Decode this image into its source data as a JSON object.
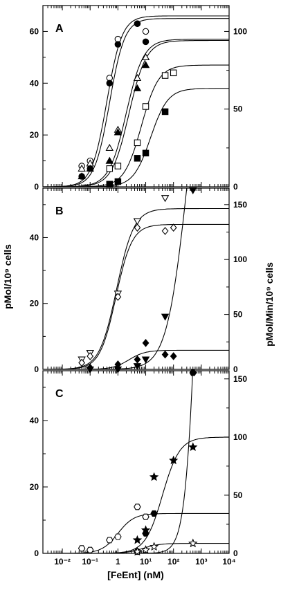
{
  "figure": {
    "left_axis_title": "pMol/10⁹ cells",
    "right_axis_title": "pMol/Min/10⁹ cells",
    "x_axis_title": "[FeEnt] (nM)",
    "x_tick_labels": [
      "10⁻²",
      "10⁻¹",
      "1",
      "10¹",
      "10²",
      "10³",
      "10⁴"
    ]
  },
  "chart_data": [
    {
      "type": "scatter",
      "panel": "A",
      "x_scale": "log",
      "xlim": [
        0.002,
        10000
      ],
      "ylim_left": [
        0,
        70
      ],
      "ylim_right": [
        0,
        116.67
      ],
      "left_ticks": [
        "0",
        "20",
        "40",
        "60"
      ],
      "right_ticks": [
        "0",
        "50",
        "100"
      ],
      "grid": false,
      "series": [
        {
          "marker": "circle-open",
          "x": [
            0.05,
            0.1,
            0.5,
            1,
            5,
            10
          ],
          "y": [
            8,
            10,
            42,
            57,
            63,
            60
          ]
        },
        {
          "marker": "circle-filled",
          "x": [
            0.05,
            0.1,
            0.5,
            1,
            5,
            10
          ],
          "y": [
            4,
            7,
            40,
            55,
            63,
            56
          ]
        },
        {
          "marker": "triangle-open",
          "x": [
            0.05,
            0.1,
            0.5,
            1,
            5,
            10
          ],
          "y": [
            7,
            9,
            15,
            22,
            42,
            50
          ]
        },
        {
          "marker": "triangle-filled",
          "x": [
            0.05,
            0.1,
            0.5,
            1,
            5,
            10
          ],
          "y": [
            4,
            7,
            10,
            21,
            38,
            47
          ]
        },
        {
          "marker": "square-open",
          "x": [
            0.5,
            1,
            5,
            10,
            50,
            100
          ],
          "y": [
            7,
            8,
            17,
            31,
            43,
            44
          ]
        },
        {
          "marker": "square-filled",
          "x": [
            0.5,
            1,
            5,
            10,
            50
          ],
          "y": [
            1,
            2,
            11,
            13,
            29
          ]
        }
      ],
      "fits": [
        {
          "top": 66,
          "ec50": 0.4,
          "n": 1.6
        },
        {
          "top": 65,
          "ec50": 0.5,
          "n": 1.6
        },
        {
          "top": 57,
          "ec50": 2,
          "n": 1.4
        },
        {
          "top": 56.5,
          "ec50": 2.5,
          "n": 1.4
        },
        {
          "top": 47,
          "ec50": 7,
          "n": 1.4
        },
        {
          "top": 38,
          "ec50": 15,
          "n": 1.4
        }
      ]
    },
    {
      "type": "scatter",
      "panel": "B",
      "x_scale": "log",
      "xlim": [
        0.002,
        10000
      ],
      "ylim_left": [
        0,
        55
      ],
      "ylim_right": [
        0,
        165
      ],
      "left_ticks": [
        "0",
        "20",
        "40"
      ],
      "right_ticks": [
        "0",
        "50",
        "100",
        "150"
      ],
      "grid": false,
      "series": [
        {
          "marker": "triangle-down-open",
          "x": [
            0.05,
            0.1,
            1,
            5,
            50
          ],
          "y": [
            3,
            5,
            23,
            45,
            52
          ]
        },
        {
          "marker": "diamond-open",
          "x": [
            0.05,
            0.1,
            1,
            5,
            50,
            100
          ],
          "y": [
            2,
            4,
            22,
            43,
            42,
            43
          ]
        },
        {
          "marker": "diamond-filled",
          "x": [
            0.1,
            1,
            5,
            10,
            50,
            100
          ],
          "y": [
            0.5,
            1.5,
            3,
            8,
            4.5,
            4
          ]
        },
        {
          "marker": "triangle-down-filled",
          "x": [
            0.1,
            1,
            5,
            10,
            50,
            500
          ],
          "y": [
            0,
            0,
            1,
            3,
            16,
            55
          ]
        }
      ],
      "fits": [
        {
          "top": 48.8,
          "ec50": 0.9,
          "n": 1.4
        },
        {
          "top": 44,
          "ec50": 0.85,
          "n": 1.5
        },
        {
          "top": 5.8,
          "ec50": 2.5,
          "n": 1.5
        },
        {
          "top": 110,
          "ec50": 300,
          "n": 1.2
        }
      ]
    },
    {
      "type": "scatter",
      "panel": "C",
      "x_scale": "log",
      "xlim": [
        0.002,
        10000
      ],
      "ylim_left": [
        0,
        55
      ],
      "ylim_right": [
        0,
        157
      ],
      "left_ticks": [
        "0",
        "20",
        "40"
      ],
      "right_ticks": [
        "0",
        "50",
        "100",
        "150"
      ],
      "grid": false,
      "series": [
        {
          "marker": "hexagon-open",
          "x": [
            0.05,
            0.1,
            0.5,
            1,
            5,
            10
          ],
          "y": [
            1.5,
            1,
            4,
            5,
            14,
            11
          ]
        },
        {
          "marker": "hexagon-filled",
          "x": [
            5,
            10,
            20,
            500
          ],
          "y": [
            0.5,
            6,
            12,
            55
          ]
        },
        {
          "marker": "star-filled",
          "x": [
            5,
            10,
            20,
            100,
            500
          ],
          "y": [
            4,
            7,
            23,
            28,
            32
          ]
        },
        {
          "marker": "star-open",
          "x": [
            5,
            10,
            20,
            500
          ],
          "y": [
            0.5,
            1,
            2,
            3
          ]
        }
      ],
      "fits": [
        {
          "top": 12,
          "ec50": 1,
          "n": 1.5
        },
        {
          "top": 200,
          "ec50": 800,
          "n": 2
        },
        {
          "top": 35,
          "ec50": 40,
          "n": 1.4
        },
        {
          "top": 3,
          "ec50": 8,
          "n": 1.5
        }
      ]
    }
  ]
}
